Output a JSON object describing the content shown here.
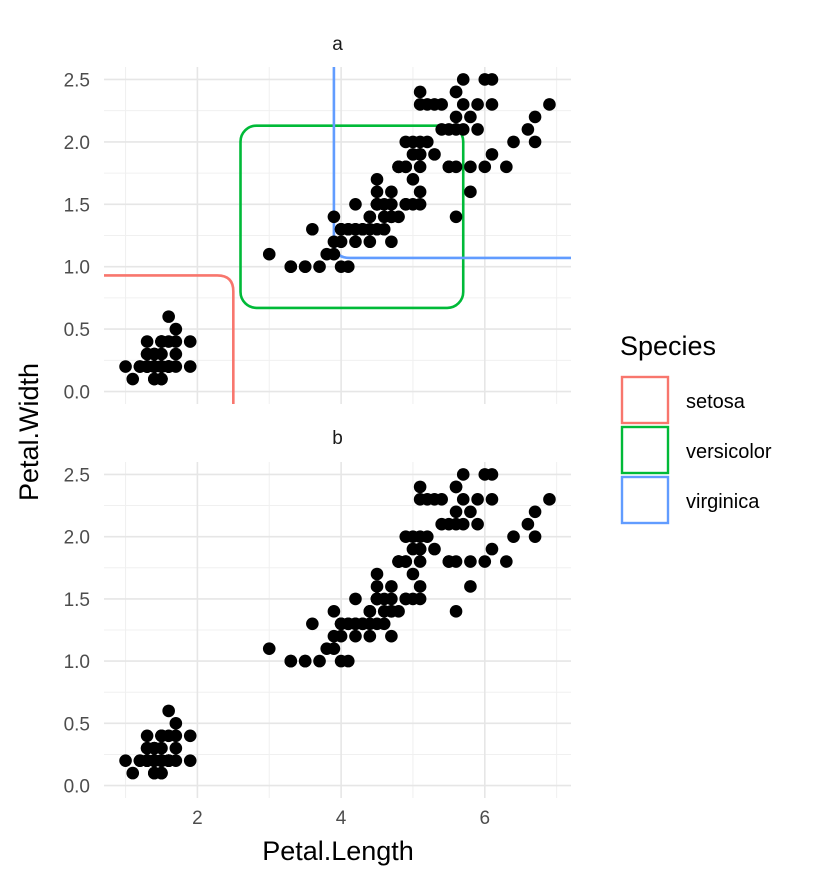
{
  "chart_data": {
    "type": "scatter",
    "xlabel": "Petal.Length",
    "ylabel": "Petal.Width",
    "xlim": [
      0.7,
      7.2
    ],
    "ylim": [
      -0.1,
      2.6
    ],
    "x_ticks": [
      2,
      4,
      6
    ],
    "y_ticks": [
      "0.0",
      "0.5",
      "1.0",
      "1.5",
      "2.0",
      "2.5"
    ],
    "y_tick_values": [
      0.0,
      0.5,
      1.0,
      1.5,
      2.0,
      2.5
    ],
    "panels": [
      {
        "label": "a",
        "show_regions": true
      },
      {
        "label": "b",
        "show_regions": false
      }
    ],
    "legend": {
      "title": "Species",
      "position": "right",
      "entries": [
        {
          "label": "setosa",
          "color": "#F8766D"
        },
        {
          "label": "versicolor",
          "color": "#00BA38"
        },
        {
          "label": "virginica",
          "color": "#619CFF"
        }
      ]
    },
    "regions": {
      "setosa": {
        "x_max": 2.5,
        "y_max": 0.93
      },
      "versicolor": {
        "x_min": 2.6,
        "x_max": 5.7,
        "y_min": 0.67,
        "y_max": 2.13
      },
      "virginica": {
        "x_min": 3.9,
        "y_min": 1.07
      }
    },
    "points": [
      [
        1.4,
        0.2
      ],
      [
        1.4,
        0.2
      ],
      [
        1.3,
        0.2
      ],
      [
        1.5,
        0.2
      ],
      [
        1.4,
        0.2
      ],
      [
        1.7,
        0.4
      ],
      [
        1.4,
        0.3
      ],
      [
        1.5,
        0.2
      ],
      [
        1.4,
        0.2
      ],
      [
        1.5,
        0.1
      ],
      [
        1.5,
        0.2
      ],
      [
        1.6,
        0.2
      ],
      [
        1.4,
        0.1
      ],
      [
        1.1,
        0.1
      ],
      [
        1.2,
        0.2
      ],
      [
        1.5,
        0.4
      ],
      [
        1.3,
        0.4
      ],
      [
        1.4,
        0.3
      ],
      [
        1.7,
        0.3
      ],
      [
        1.5,
        0.3
      ],
      [
        1.7,
        0.2
      ],
      [
        1.5,
        0.4
      ],
      [
        1.0,
        0.2
      ],
      [
        1.7,
        0.5
      ],
      [
        1.9,
        0.2
      ],
      [
        1.6,
        0.2
      ],
      [
        1.6,
        0.4
      ],
      [
        1.5,
        0.2
      ],
      [
        1.4,
        0.2
      ],
      [
        1.6,
        0.2
      ],
      [
        1.6,
        0.2
      ],
      [
        1.5,
        0.4
      ],
      [
        1.5,
        0.1
      ],
      [
        1.4,
        0.2
      ],
      [
        1.5,
        0.2
      ],
      [
        1.2,
        0.2
      ],
      [
        1.3,
        0.2
      ],
      [
        1.4,
        0.1
      ],
      [
        1.3,
        0.2
      ],
      [
        1.5,
        0.2
      ],
      [
        1.3,
        0.3
      ],
      [
        1.3,
        0.3
      ],
      [
        1.3,
        0.2
      ],
      [
        1.6,
        0.6
      ],
      [
        1.9,
        0.4
      ],
      [
        1.4,
        0.3
      ],
      [
        1.6,
        0.2
      ],
      [
        1.4,
        0.2
      ],
      [
        1.5,
        0.2
      ],
      [
        1.4,
        0.2
      ],
      [
        4.7,
        1.4
      ],
      [
        4.5,
        1.5
      ],
      [
        4.9,
        1.5
      ],
      [
        4.0,
        1.3
      ],
      [
        4.6,
        1.5
      ],
      [
        4.5,
        1.3
      ],
      [
        4.7,
        1.6
      ],
      [
        3.3,
        1.0
      ],
      [
        4.6,
        1.3
      ],
      [
        3.9,
        1.4
      ],
      [
        3.5,
        1.0
      ],
      [
        4.2,
        1.5
      ],
      [
        4.0,
        1.0
      ],
      [
        4.7,
        1.4
      ],
      [
        3.6,
        1.3
      ],
      [
        4.4,
        1.4
      ],
      [
        4.5,
        1.5
      ],
      [
        4.1,
        1.0
      ],
      [
        4.5,
        1.5
      ],
      [
        3.9,
        1.1
      ],
      [
        4.8,
        1.8
      ],
      [
        4.0,
        1.3
      ],
      [
        4.9,
        1.5
      ],
      [
        4.7,
        1.2
      ],
      [
        4.3,
        1.3
      ],
      [
        4.4,
        1.4
      ],
      [
        4.8,
        1.4
      ],
      [
        5.0,
        1.7
      ],
      [
        4.5,
        1.5
      ],
      [
        3.5,
        1.0
      ],
      [
        3.8,
        1.1
      ],
      [
        3.7,
        1.0
      ],
      [
        3.9,
        1.2
      ],
      [
        5.1,
        1.6
      ],
      [
        4.5,
        1.5
      ],
      [
        4.5,
        1.6
      ],
      [
        4.7,
        1.5
      ],
      [
        4.4,
        1.3
      ],
      [
        4.1,
        1.3
      ],
      [
        4.0,
        1.3
      ],
      [
        4.4,
        1.2
      ],
      [
        4.6,
        1.4
      ],
      [
        4.0,
        1.2
      ],
      [
        3.3,
        1.0
      ],
      [
        4.2,
        1.3
      ],
      [
        4.2,
        1.2
      ],
      [
        4.2,
        1.3
      ],
      [
        4.3,
        1.3
      ],
      [
        3.0,
        1.1
      ],
      [
        4.1,
        1.3
      ],
      [
        6.0,
        2.5
      ],
      [
        5.1,
        1.9
      ],
      [
        5.9,
        2.1
      ],
      [
        5.6,
        1.8
      ],
      [
        5.8,
        2.2
      ],
      [
        6.6,
        2.1
      ],
      [
        4.5,
        1.7
      ],
      [
        6.3,
        1.8
      ],
      [
        5.8,
        1.8
      ],
      [
        6.1,
        2.5
      ],
      [
        5.1,
        2.0
      ],
      [
        5.3,
        1.9
      ],
      [
        5.5,
        2.1
      ],
      [
        5.0,
        2.0
      ],
      [
        5.1,
        2.4
      ],
      [
        5.3,
        2.3
      ],
      [
        5.5,
        1.8
      ],
      [
        6.7,
        2.2
      ],
      [
        6.9,
        2.3
      ],
      [
        5.0,
        1.5
      ],
      [
        5.7,
        2.3
      ],
      [
        4.9,
        2.0
      ],
      [
        6.7,
        2.0
      ],
      [
        4.9,
        1.8
      ],
      [
        5.7,
        2.1
      ],
      [
        6.0,
        1.8
      ],
      [
        4.8,
        1.8
      ],
      [
        4.9,
        1.8
      ],
      [
        5.6,
        2.1
      ],
      [
        5.8,
        1.6
      ],
      [
        6.1,
        1.9
      ],
      [
        6.4,
        2.0
      ],
      [
        5.6,
        2.2
      ],
      [
        5.1,
        1.5
      ],
      [
        5.6,
        1.4
      ],
      [
        6.1,
        2.3
      ],
      [
        5.6,
        2.4
      ],
      [
        5.5,
        1.8
      ],
      [
        4.8,
        1.8
      ],
      [
        5.4,
        2.1
      ],
      [
        5.6,
        2.4
      ],
      [
        5.1,
        2.3
      ],
      [
        5.1,
        1.9
      ],
      [
        5.9,
        2.3
      ],
      [
        5.7,
        2.5
      ],
      [
        5.2,
        2.3
      ],
      [
        5.0,
        1.9
      ],
      [
        5.2,
        2.0
      ],
      [
        5.4,
        2.3
      ],
      [
        5.1,
        1.8
      ]
    ]
  }
}
